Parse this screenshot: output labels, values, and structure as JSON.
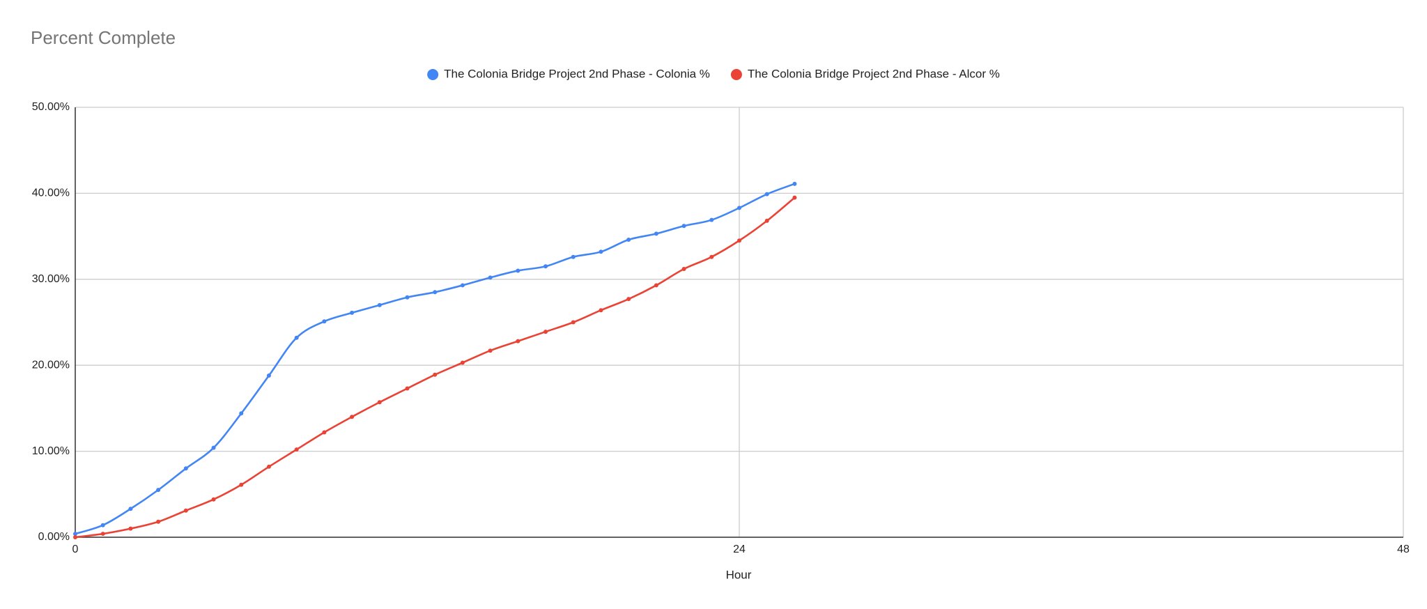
{
  "chart_data": {
    "type": "line",
    "title": "Percent Complete",
    "x_label": "Hour",
    "x": [
      0,
      1,
      2,
      3,
      4,
      5,
      6,
      7,
      8,
      9,
      10,
      11,
      12,
      13,
      14,
      15,
      16,
      17,
      18,
      19,
      20,
      21,
      22,
      23,
      24,
      25,
      26
    ],
    "series": [
      {
        "name": "The Colonia Bridge Project 2nd Phase - Colonia %",
        "color": "#4285f4",
        "values": [
          0.4,
          1.4,
          3.3,
          5.5,
          8.0,
          10.4,
          14.4,
          18.8,
          23.2,
          25.1,
          26.1,
          27.0,
          27.9,
          28.5,
          29.3,
          30.2,
          31.0,
          31.5,
          32.6,
          33.2,
          34.6,
          35.3,
          36.2,
          36.9,
          38.3,
          39.9,
          41.1
        ]
      },
      {
        "name": "The Colonia Bridge Project 2nd Phase - Alcor %",
        "color": "#ea4335",
        "values": [
          0.0,
          0.4,
          1.0,
          1.8,
          3.1,
          4.4,
          6.1,
          8.2,
          10.2,
          12.2,
          14.0,
          15.7,
          17.3,
          18.9,
          20.3,
          21.7,
          22.8,
          23.9,
          25.0,
          26.4,
          27.7,
          29.3,
          31.2,
          32.6,
          34.5,
          36.8,
          39.5
        ]
      }
    ],
    "xlim": [
      0,
      48
    ],
    "xticks": [
      0,
      24,
      48
    ],
    "ylim": [
      0,
      50
    ],
    "yticks": [
      {
        "value": 0,
        "label": "0.00%"
      },
      {
        "value": 10,
        "label": "10.00%"
      },
      {
        "value": 20,
        "label": "20.00%"
      },
      {
        "value": 30,
        "label": "30.00%"
      },
      {
        "value": 40,
        "label": "40.00%"
      },
      {
        "value": 50,
        "label": "50.00%"
      }
    ],
    "grid": true,
    "legend": "top"
  }
}
